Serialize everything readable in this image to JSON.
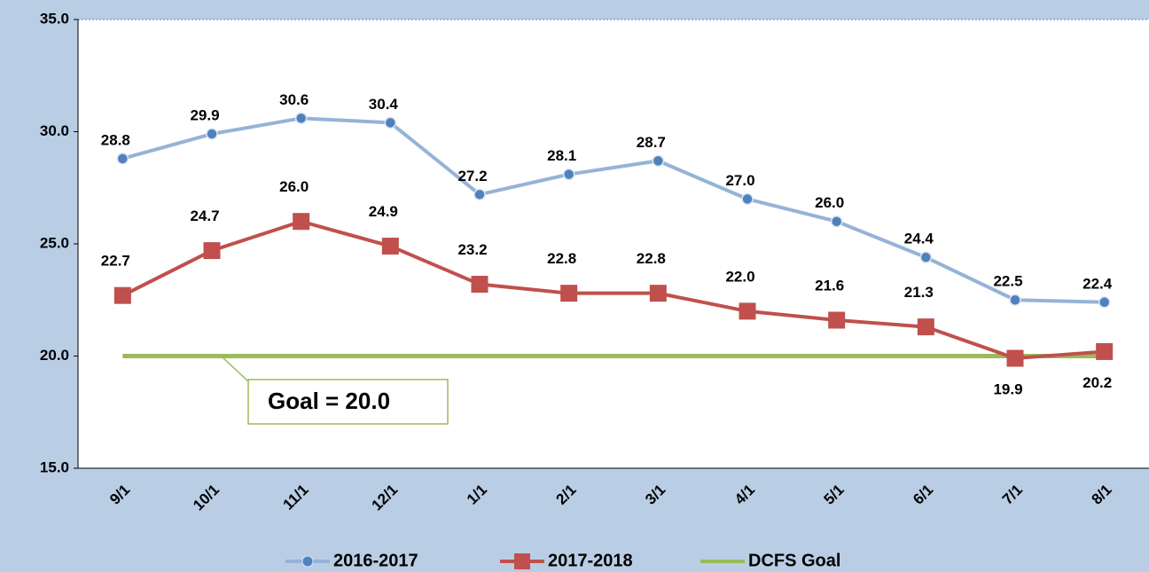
{
  "chart_data": {
    "type": "line",
    "categories": [
      "9/1",
      "10/1",
      "11/1",
      "12/1",
      "1/1",
      "2/1",
      "3/1",
      "4/1",
      "5/1",
      "6/1",
      "7/1",
      "8/1"
    ],
    "series": [
      {
        "name": "2016-2017",
        "color": "#4f81bd",
        "line_color": "#95b3d7",
        "marker": "circle",
        "values": [
          28.8,
          29.9,
          30.6,
          30.4,
          27.2,
          28.1,
          28.7,
          27.0,
          26.0,
          24.4,
          22.5,
          22.4
        ],
        "value_labels": [
          "28.8",
          "29.9",
          "30.6",
          "30.4",
          "27.2",
          "28.1",
          "28.7",
          "27.0",
          "26.0",
          "24.4",
          "22.5",
          "22.4"
        ]
      },
      {
        "name": "2017-2018",
        "color": "#c0504d",
        "line_color": "#c0504d",
        "marker": "square",
        "values": [
          22.7,
          24.7,
          26.0,
          24.9,
          23.2,
          22.8,
          22.8,
          22.0,
          21.6,
          21.3,
          19.9,
          20.2
        ],
        "value_labels": [
          "22.7",
          "24.7",
          "26.0",
          "24.9",
          "23.2",
          "22.8",
          "22.8",
          "22.0",
          "21.6",
          "21.3",
          "19.9",
          "20.2"
        ]
      },
      {
        "name": "DCFS Goal",
        "color": "#9bbb59",
        "line_color": "#9bbb59",
        "marker": "none",
        "values": [
          20,
          20,
          20,
          20,
          20,
          20,
          20,
          20,
          20,
          20,
          20,
          20
        ]
      }
    ],
    "annotation": "Goal = 20.0",
    "ylim": [
      15,
      35
    ],
    "yticks": [
      {
        "value": 15,
        "label": "15.0"
      },
      {
        "value": 20,
        "label": "20.0"
      },
      {
        "value": 25,
        "label": "25.0"
      },
      {
        "value": 30,
        "label": "30.0"
      },
      {
        "value": 35,
        "label": "35.0"
      }
    ],
    "legend": "bottom"
  }
}
